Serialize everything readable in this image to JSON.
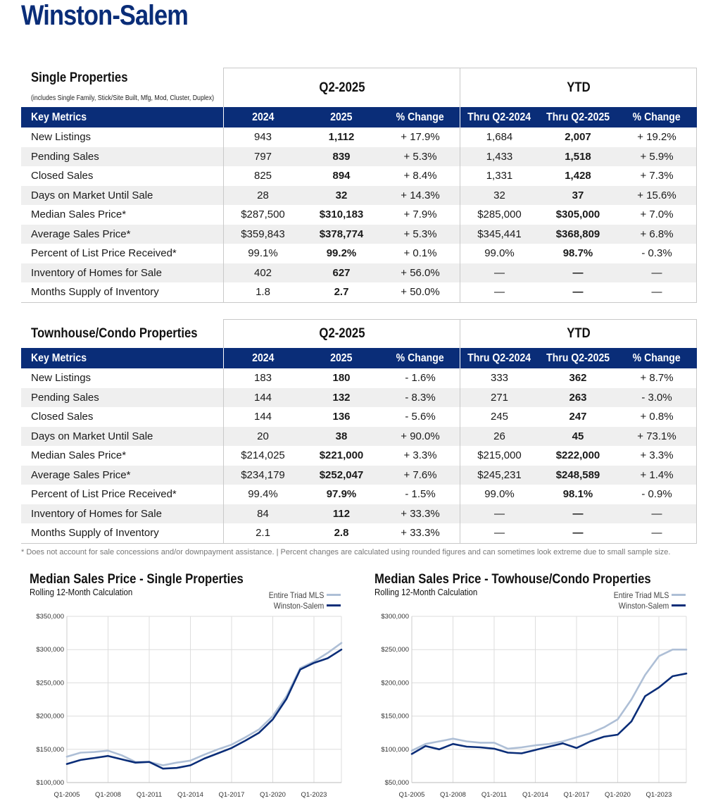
{
  "page_title": "Winston-Salem",
  "colors": {
    "brand_navy": "#0a2d78",
    "triad_line": "#aebfd6",
    "city_line": "#0a2d78"
  },
  "single": {
    "title": "Single Properties",
    "subtitle": "(includes Single Family, Stick/Site Built, Mfg, Mod, Cluster, Duplex)",
    "period_header": "Q2-2025",
    "ytd_header": "YTD",
    "columns": [
      "Key Metrics",
      "2024",
      "2025",
      "% Change",
      "Thru Q2-2024",
      "Thru Q2-2025",
      "% Change"
    ],
    "rows": [
      [
        "New Listings",
        "943",
        "1,112",
        "+ 17.9%",
        "1,684",
        "2,007",
        "+ 19.2%"
      ],
      [
        "Pending Sales",
        "797",
        "839",
        "+ 5.3%",
        "1,433",
        "1,518",
        "+ 5.9%"
      ],
      [
        "Closed Sales",
        "825",
        "894",
        "+ 8.4%",
        "1,331",
        "1,428",
        "+ 7.3%"
      ],
      [
        "Days on Market Until Sale",
        "28",
        "32",
        "+ 14.3%",
        "32",
        "37",
        "+ 15.6%"
      ],
      [
        "Median Sales Price*",
        "$287,500",
        "$310,183",
        "+ 7.9%",
        "$285,000",
        "$305,000",
        "+ 7.0%"
      ],
      [
        "Average Sales Price*",
        "$359,843",
        "$378,774",
        "+ 5.3%",
        "$345,441",
        "$368,809",
        "+ 6.8%"
      ],
      [
        "Percent of List Price Received*",
        "99.1%",
        "99.2%",
        "+ 0.1%",
        "99.0%",
        "98.7%",
        "- 0.3%"
      ],
      [
        "Inventory of Homes for Sale",
        "402",
        "627",
        "+ 56.0%",
        "—",
        "—",
        "—"
      ],
      [
        "Months Supply of Inventory",
        "1.8",
        "2.7",
        "+ 50.0%",
        "—",
        "—",
        "—"
      ]
    ]
  },
  "condo": {
    "title": "Townhouse/Condo Properties",
    "period_header": "Q2-2025",
    "ytd_header": "YTD",
    "columns": [
      "Key Metrics",
      "2024",
      "2025",
      "% Change",
      "Thru Q2-2024",
      "Thru Q2-2025",
      "% Change"
    ],
    "rows": [
      [
        "New Listings",
        "183",
        "180",
        "- 1.6%",
        "333",
        "362",
        "+ 8.7%"
      ],
      [
        "Pending Sales",
        "144",
        "132",
        "- 8.3%",
        "271",
        "263",
        "- 3.0%"
      ],
      [
        "Closed Sales",
        "144",
        "136",
        "- 5.6%",
        "245",
        "247",
        "+ 0.8%"
      ],
      [
        "Days on Market Until Sale",
        "20",
        "38",
        "+ 90.0%",
        "26",
        "45",
        "+ 73.1%"
      ],
      [
        "Median Sales Price*",
        "$214,025",
        "$221,000",
        "+ 3.3%",
        "$215,000",
        "$222,000",
        "+ 3.3%"
      ],
      [
        "Average Sales Price*",
        "$234,179",
        "$252,047",
        "+ 7.6%",
        "$245,231",
        "$248,589",
        "+ 1.4%"
      ],
      [
        "Percent of List Price Received*",
        "99.4%",
        "97.9%",
        "- 1.5%",
        "99.0%",
        "98.1%",
        "- 0.9%"
      ],
      [
        "Inventory of Homes for Sale",
        "84",
        "112",
        "+ 33.3%",
        "—",
        "—",
        "—"
      ],
      [
        "Months Supply of Inventory",
        "2.1",
        "2.8",
        "+ 33.3%",
        "—",
        "—",
        "—"
      ]
    ]
  },
  "footnote": "* Does not account for sale concessions and/or downpayment assistance. | Percent changes are calculated using rounded figures and can sometimes look extreme due to small sample size.",
  "chart_data": [
    {
      "type": "line",
      "title": "Median Sales Price - Single Properties",
      "subtitle": "Rolling 12-Month Calculation",
      "x": [
        "Q1-2005",
        "Q1-2006",
        "Q1-2007",
        "Q1-2008",
        "Q1-2009",
        "Q1-2010",
        "Q1-2011",
        "Q1-2012",
        "Q1-2013",
        "Q1-2014",
        "Q1-2015",
        "Q1-2016",
        "Q1-2017",
        "Q1-2018",
        "Q1-2019",
        "Q1-2020",
        "Q1-2021",
        "Q1-2022",
        "Q1-2023",
        "Q1-2024",
        "Q2-2025"
      ],
      "x_tick_labels": [
        "Q1-2005",
        "Q1-2008",
        "Q1-2011",
        "Q1-2014",
        "Q1-2017",
        "Q1-2020",
        "Q1-2023"
      ],
      "y_tick_labels": [
        "$100,000",
        "$150,000",
        "$200,000",
        "$250,000",
        "$300,000",
        "$350,000"
      ],
      "ylim": [
        100000,
        350000
      ],
      "legend_position": "top-right",
      "grid": true,
      "series": [
        {
          "name": "Entire Triad MLS",
          "color": "#aebfd6",
          "values": [
            139000,
            145000,
            146000,
            148000,
            141000,
            131000,
            131000,
            126000,
            130000,
            133000,
            142000,
            150000,
            157000,
            168000,
            180000,
            200000,
            230000,
            272000,
            282000,
            295000,
            310000
          ]
        },
        {
          "name": "Winston-Salem",
          "color": "#0a2d78",
          "values": [
            128000,
            134000,
            137000,
            140000,
            135000,
            130000,
            131000,
            121000,
            122000,
            126000,
            136000,
            144000,
            152000,
            163000,
            175000,
            195000,
            226000,
            270000,
            280000,
            287000,
            300000
          ]
        }
      ]
    },
    {
      "type": "line",
      "title": "Median Sales Price - Towhouse/Condo Properties",
      "subtitle": "Rolling 12-Month Calculation",
      "x": [
        "Q1-2005",
        "Q1-2006",
        "Q1-2007",
        "Q1-2008",
        "Q1-2009",
        "Q1-2010",
        "Q1-2011",
        "Q1-2012",
        "Q1-2013",
        "Q1-2014",
        "Q1-2015",
        "Q1-2016",
        "Q1-2017",
        "Q1-2018",
        "Q1-2019",
        "Q1-2020",
        "Q1-2021",
        "Q1-2022",
        "Q1-2023",
        "Q1-2024",
        "Q2-2025"
      ],
      "x_tick_labels": [
        "Q1-2005",
        "Q1-2008",
        "Q1-2011",
        "Q1-2014",
        "Q1-2017",
        "Q1-2020",
        "Q1-2023"
      ],
      "y_tick_labels": [
        "$50,000",
        "$100,000",
        "$150,000",
        "$200,000",
        "$250,000",
        "$300,000"
      ],
      "ylim": [
        50000,
        300000
      ],
      "legend_position": "top-right",
      "grid": true,
      "series": [
        {
          "name": "Entire Triad MLS",
          "color": "#aebfd6",
          "values": [
            98000,
            108000,
            112000,
            116000,
            112000,
            110000,
            110000,
            101000,
            103000,
            106000,
            108000,
            112000,
            118000,
            124000,
            133000,
            145000,
            175000,
            212000,
            240000,
            250000,
            250000
          ]
        },
        {
          "name": "Winston-Salem",
          "color": "#0a2d78",
          "values": [
            93000,
            105000,
            100000,
            108000,
            104000,
            103000,
            101000,
            95000,
            94000,
            99000,
            104000,
            109000,
            102000,
            112000,
            119000,
            122000,
            142000,
            180000,
            193000,
            210000,
            214000
          ]
        }
      ]
    }
  ]
}
